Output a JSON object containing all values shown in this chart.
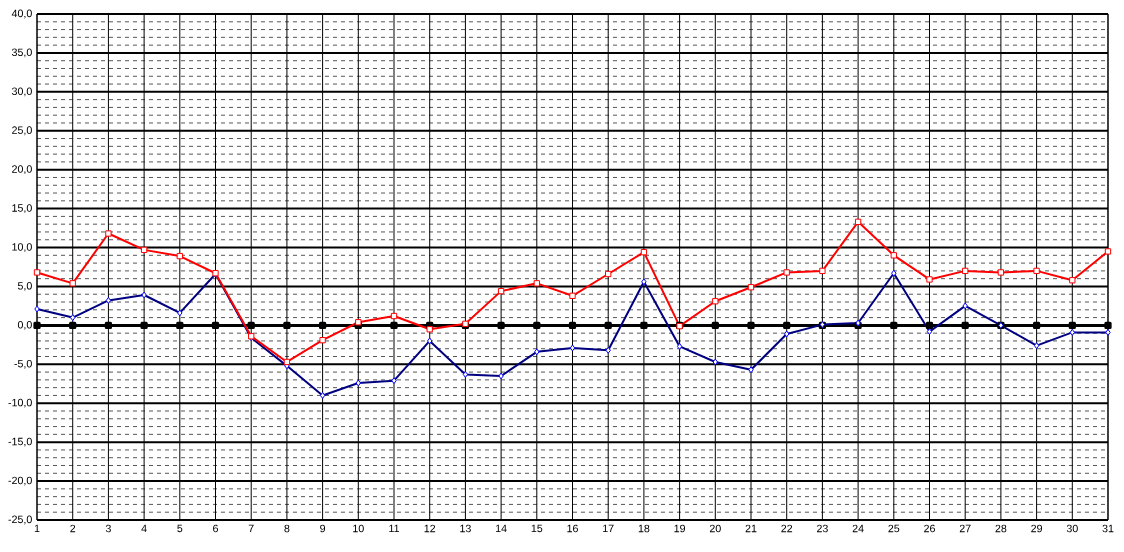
{
  "chart_data": {
    "type": "line",
    "categories": [
      "1",
      "2",
      "3",
      "4",
      "5",
      "6",
      "7",
      "8",
      "9",
      "10",
      "11",
      "12",
      "13",
      "14",
      "15",
      "16",
      "17",
      "18",
      "19",
      "20",
      "21",
      "22",
      "23",
      "24",
      "25",
      "26",
      "27",
      "28",
      "29",
      "30",
      "31"
    ],
    "series": [
      {
        "color": "#000000",
        "marker": "square",
        "values": [
          0,
          0,
          0,
          0,
          0,
          0,
          0,
          0,
          0,
          0,
          0,
          0,
          0,
          0,
          0,
          0,
          0,
          0,
          0,
          0,
          0,
          0,
          0,
          0,
          0,
          0,
          0,
          0,
          0,
          0,
          0
        ]
      },
      {
        "color": "#000080",
        "marker": "diamond",
        "values": [
          2.1,
          1.0,
          3.2,
          3.9,
          1.6,
          6.6,
          -1.6,
          -5.2,
          -9.0,
          -7.4,
          -7.1,
          -2.0,
          -6.3,
          -6.5,
          -3.4,
          -2.9,
          -3.2,
          5.6,
          -2.7,
          -4.7,
          -5.7,
          -1.1,
          0.1,
          0.3,
          6.7,
          -0.8,
          2.5,
          0.0,
          -2.6,
          -0.9,
          -0.9
        ]
      },
      {
        "color": "#ff0000",
        "marker": "square",
        "values": [
          6.8,
          5.4,
          11.8,
          9.7,
          8.9,
          6.7,
          -1.4,
          -4.7,
          -1.9,
          0.4,
          1.2,
          -0.5,
          0.2,
          4.4,
          5.4,
          3.8,
          6.6,
          9.4,
          -0.1,
          3.1,
          4.9,
          6.8,
          7.0,
          13.3,
          9.0,
          5.9,
          7.0,
          6.8,
          7.0,
          5.8,
          9.5
        ]
      }
    ],
    "ylim": [
      -25,
      40
    ],
    "yticks": [
      {
        "value": -25,
        "label": "-25,0"
      },
      {
        "value": -20,
        "label": "-20,0"
      },
      {
        "value": -15,
        "label": "-15,0"
      },
      {
        "value": -10,
        "label": "-10,0"
      },
      {
        "value": -5,
        "label": "-5,0"
      },
      {
        "value": 0,
        "label": "0,0"
      },
      {
        "value": 5,
        "label": "5,0"
      },
      {
        "value": 10,
        "label": "10,0"
      },
      {
        "value": 15,
        "label": "15,0"
      },
      {
        "value": 20,
        "label": "20,0"
      },
      {
        "value": 25,
        "label": "25,0"
      },
      {
        "value": 30,
        "label": "30,0"
      },
      {
        "value": 35,
        "label": "35,0"
      },
      {
        "value": 40,
        "label": "40,0"
      }
    ],
    "grid": true
  }
}
